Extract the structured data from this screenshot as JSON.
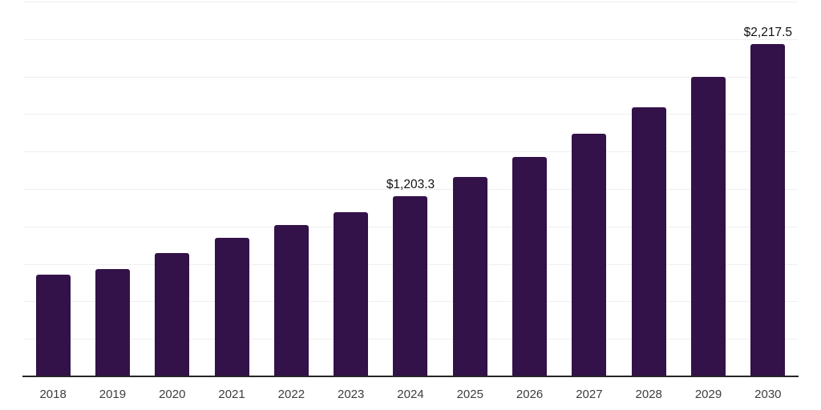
{
  "chart_data": {
    "type": "bar",
    "title": "",
    "xlabel": "",
    "ylabel": "",
    "categories": [
      "2018",
      "2019",
      "2020",
      "2021",
      "2022",
      "2023",
      "2024",
      "2025",
      "2026",
      "2027",
      "2028",
      "2029",
      "2030"
    ],
    "values": [
      678,
      717,
      824,
      924,
      1011,
      1096,
      1203.3,
      1330,
      1465,
      1620,
      1796,
      2000,
      2217.5
    ],
    "data_labels": {
      "2024": "$1,203.3",
      "2030": "$2,217.5"
    },
    "ylim": [
      0,
      2500
    ],
    "grid_step": 250,
    "grid": "horizontal",
    "legend": "none",
    "bar_color": "#331149",
    "gridline_color": "#efefef",
    "axis_color": "#262626",
    "tick_label_color": "#3d3d3d",
    "value_label_color": "#111111",
    "background_color": "#ffffff"
  }
}
